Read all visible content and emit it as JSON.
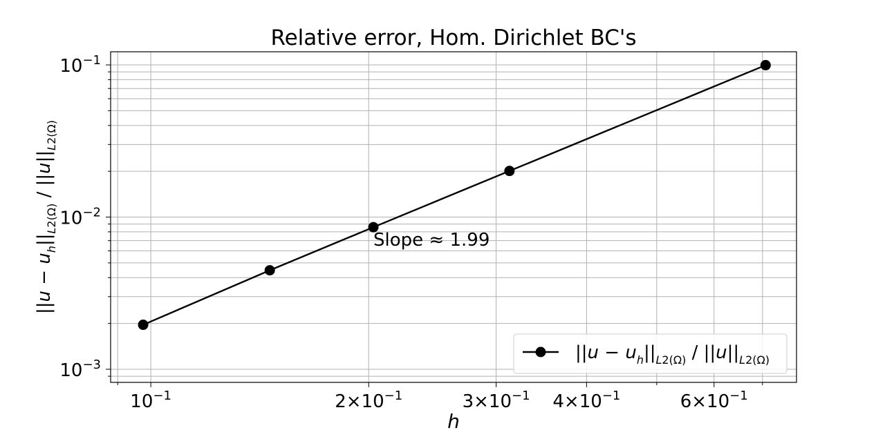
{
  "chart_data": {
    "type": "line",
    "title": "Relative error, Hom. Dirichlet BC's",
    "xlabel": "h",
    "ylabel": "||u − u_h||_{L2(Ω)} / ||u||_{L2(Ω)}",
    "xscale": "log",
    "yscale": "log",
    "xlim": [
      0.088,
      0.78
    ],
    "ylim": [
      0.00082,
      0.122
    ],
    "grid": true,
    "grid_minor": true,
    "legend_position": "lower right",
    "x_ticks": [
      {
        "value": 0.1,
        "base": "10",
        "exp": "−1",
        "prefix": ""
      },
      {
        "value": 0.2,
        "base": "10",
        "exp": "−1",
        "prefix": "2×"
      },
      {
        "value": 0.3,
        "base": "10",
        "exp": "−1",
        "prefix": "3×"
      },
      {
        "value": 0.4,
        "base": "10",
        "exp": "−1",
        "prefix": "4×"
      },
      {
        "value": 0.6,
        "base": "10",
        "exp": "−1",
        "prefix": "6×"
      }
    ],
    "y_ticks": [
      {
        "value": 0.1,
        "base": "10",
        "exp": "−1"
      },
      {
        "value": 0.01,
        "base": "10",
        "exp": "−2"
      },
      {
        "value": 0.001,
        "base": "10",
        "exp": "−3"
      }
    ],
    "series": [
      {
        "name": "||u − u_h||_{L2(Ω)} / ||u||_{L2(Ω)}",
        "color": "#000000",
        "marker": "circle",
        "x": [
          0.0976,
          0.146,
          0.203,
          0.313,
          0.707
        ],
        "y": [
          0.00196,
          0.00447,
          0.00858,
          0.0201,
          0.0996
        ]
      }
    ],
    "annotations": [
      {
        "text": "Slope ≈ 1.99",
        "x": 0.203,
        "y": 0.00858
      }
    ]
  }
}
